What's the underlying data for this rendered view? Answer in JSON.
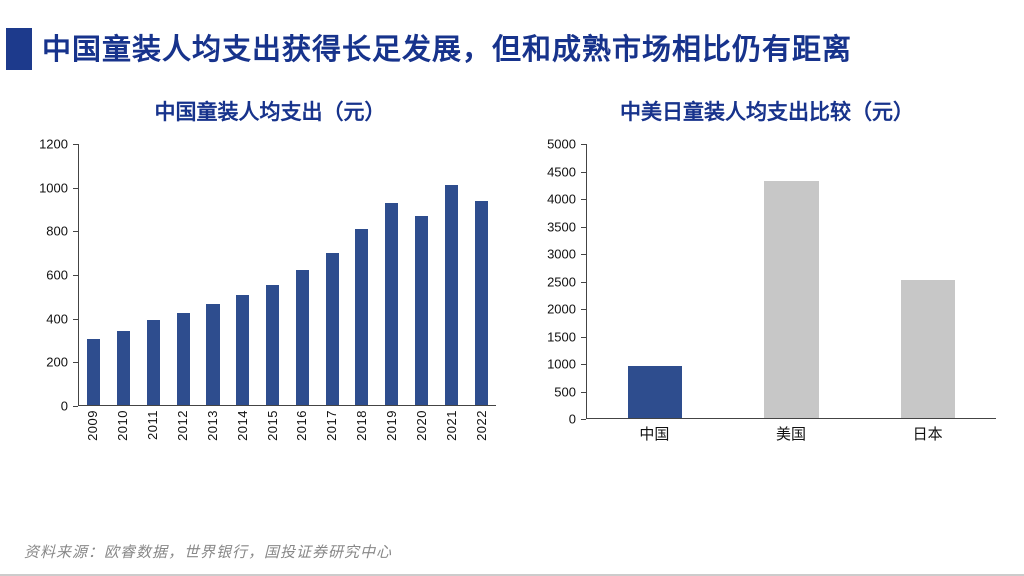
{
  "header": {
    "title": "中国童装人均支出获得长足发展，但和成熟市场相比仍有距离",
    "accent_color": "#1d3a8c",
    "title_color": "#17338c"
  },
  "footer": {
    "source": "资料来源：欧睿数据，世界银行，国投证券研究中心"
  },
  "chart_data": [
    {
      "type": "bar",
      "title": "中国童装人均支出（元）",
      "categories": [
        "2009",
        "2010",
        "2011",
        "2012",
        "2013",
        "2014",
        "2015",
        "2016",
        "2017",
        "2018",
        "2019",
        "2020",
        "2021",
        "2022"
      ],
      "values": [
        305,
        340,
        390,
        425,
        465,
        505,
        550,
        620,
        700,
        810,
        930,
        870,
        1010,
        940
      ],
      "xlabel": "",
      "ylabel": "",
      "ylim": [
        0,
        1200
      ],
      "ytick_step": 200,
      "bar_color": "#2e4d8e",
      "grid": false,
      "legend": "none"
    },
    {
      "type": "bar",
      "title": "中美日童装人均支出比较（元）",
      "categories": [
        "中国",
        "美国",
        "日本"
      ],
      "values": [
        950,
        4330,
        2520
      ],
      "colors": [
        "#2e4d8e",
        "#c7c7c7",
        "#c7c7c7"
      ],
      "xlabel": "",
      "ylabel": "",
      "ylim": [
        0,
        5000
      ],
      "ytick_step": 500,
      "bar_color": "#c7c7c7",
      "grid": false,
      "legend": "none"
    }
  ]
}
